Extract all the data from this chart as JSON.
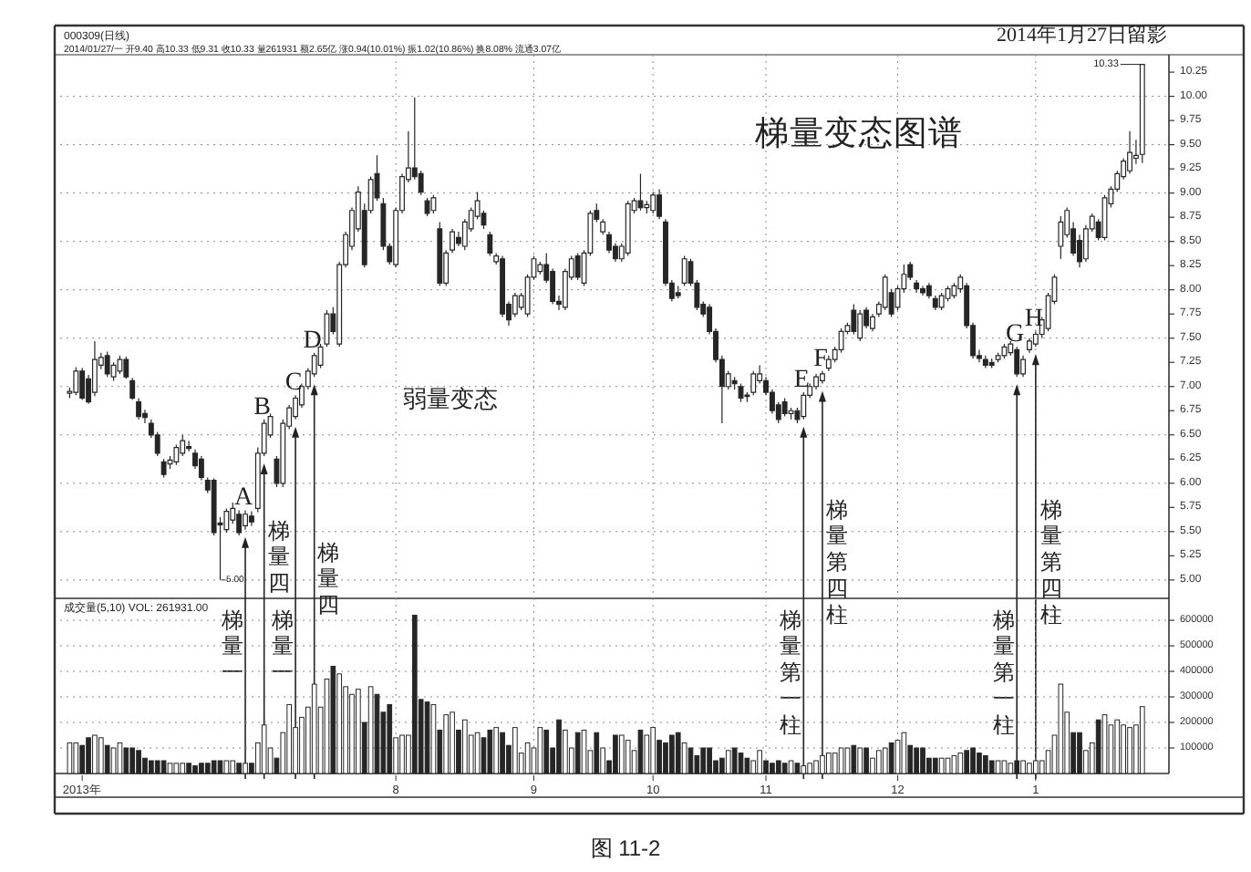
{
  "chart_data": [
    {
      "type": "candlestick",
      "title": "梯量变态图谱",
      "subtitle": "2014年1月27日留影",
      "categories": [
        null,
        null,
        "2013年",
        null,
        null,
        null,
        null,
        null,
        null,
        null,
        null,
        null,
        null,
        null,
        null,
        null,
        null,
        null,
        null,
        null,
        null,
        null,
        null,
        null,
        null,
        null,
        null,
        null,
        null,
        null,
        null,
        null,
        null,
        null,
        null,
        null,
        null,
        null,
        null,
        null,
        null,
        null,
        null,
        null,
        null,
        null,
        null,
        null,
        null,
        null,
        null,
        null,
        "8",
        null,
        null,
        null,
        null,
        null,
        null,
        null,
        null,
        null,
        null,
        null,
        null,
        null,
        null,
        null,
        null,
        null,
        null,
        null,
        null,
        null,
        "9",
        null,
        null,
        null,
        null,
        null,
        null,
        null,
        null,
        null,
        null,
        null,
        null,
        null,
        null,
        null,
        null,
        null,
        null,
        "10",
        null,
        null,
        null,
        null,
        null,
        null,
        null,
        null,
        null,
        null,
        null,
        null,
        null,
        null,
        null,
        null,
        null,
        "11",
        null,
        null,
        null,
        null,
        null,
        null,
        null,
        null,
        null,
        null,
        null,
        null,
        null,
        null,
        null,
        null,
        null,
        null,
        null,
        null,
        "12",
        null,
        null,
        null,
        null,
        null,
        null,
        null,
        null,
        null,
        null,
        null,
        null,
        null,
        null,
        null,
        null,
        null,
        null,
        null,
        null,
        null,
        "1",
        null,
        null,
        null,
        null,
        null,
        null,
        null,
        null,
        null,
        null,
        null,
        null,
        null,
        null,
        null,
        null,
        null
      ],
      "ohlc": [
        [
          6.93,
          6.99,
          6.88,
          6.95
        ],
        [
          6.94,
          7.2,
          6.91,
          7.16
        ],
        [
          7.16,
          7.19,
          6.86,
          6.88
        ],
        [
          7.08,
          7.12,
          6.82,
          6.84
        ],
        [
          6.94,
          7.47,
          6.9,
          7.28
        ],
        [
          7.22,
          7.35,
          7.18,
          7.3
        ],
        [
          7.32,
          7.36,
          7.1,
          7.13
        ],
        [
          7.1,
          7.25,
          7.06,
          7.22
        ],
        [
          7.16,
          7.32,
          7.13,
          7.28
        ],
        [
          7.28,
          7.31,
          7.08,
          7.1
        ],
        [
          7.06,
          7.09,
          6.86,
          6.88
        ],
        [
          6.84,
          6.88,
          6.66,
          6.69
        ],
        [
          6.72,
          6.76,
          6.62,
          6.68
        ],
        [
          6.62,
          6.66,
          6.47,
          6.5
        ],
        [
          6.5,
          6.53,
          6.28,
          6.31
        ],
        [
          6.22,
          6.25,
          6.06,
          6.09
        ],
        [
          6.2,
          6.28,
          6.15,
          6.24
        ],
        [
          6.22,
          6.4,
          6.19,
          6.37
        ],
        [
          6.31,
          6.5,
          6.28,
          6.44
        ],
        [
          6.38,
          6.44,
          6.33,
          6.36
        ],
        [
          6.31,
          6.35,
          6.15,
          6.18
        ],
        [
          6.25,
          6.28,
          6.03,
          6.06
        ],
        [
          6.03,
          6.06,
          5.9,
          5.93
        ],
        [
          6.03,
          6.05,
          5.46,
          5.49
        ],
        [
          5.59,
          5.65,
          5.0,
          5.57
        ],
        [
          5.52,
          5.74,
          5.49,
          5.71
        ],
        [
          5.62,
          5.8,
          5.58,
          5.74
        ],
        [
          5.68,
          5.72,
          5.46,
          5.49
        ],
        [
          5.56,
          5.72,
          5.52,
          5.68
        ],
        [
          5.66,
          5.71,
          5.56,
          5.6
        ],
        [
          5.74,
          6.37,
          5.7,
          6.31
        ],
        [
          6.31,
          6.66,
          6.28,
          6.62
        ],
        [
          6.5,
          6.72,
          6.47,
          6.69
        ],
        [
          6.25,
          6.28,
          5.96,
          6.0
        ],
        [
          6.0,
          6.66,
          5.96,
          6.62
        ],
        [
          6.59,
          6.81,
          6.56,
          6.78
        ],
        [
          6.69,
          6.91,
          6.66,
          6.88
        ],
        [
          6.81,
          7.03,
          6.78,
          7.0
        ],
        [
          7.0,
          7.19,
          6.97,
          7.16
        ],
        [
          7.13,
          7.35,
          7.1,
          7.32
        ],
        [
          7.22,
          7.44,
          7.19,
          7.41
        ],
        [
          7.44,
          7.79,
          7.41,
          7.75
        ],
        [
          7.75,
          7.82,
          7.54,
          7.57
        ],
        [
          7.44,
          8.29,
          7.41,
          8.26
        ],
        [
          8.26,
          8.6,
          8.23,
          8.57
        ],
        [
          8.45,
          8.85,
          8.41,
          8.82
        ],
        [
          8.63,
          9.07,
          8.6,
          9.01
        ],
        [
          8.82,
          8.89,
          8.23,
          8.26
        ],
        [
          8.82,
          9.17,
          8.79,
          9.14
        ],
        [
          9.2,
          9.39,
          8.92,
          8.95
        ],
        [
          8.89,
          8.95,
          8.41,
          8.45
        ],
        [
          8.45,
          8.48,
          8.26,
          8.29
        ],
        [
          8.26,
          8.85,
          8.23,
          8.82
        ],
        [
          8.82,
          9.2,
          8.79,
          9.17
        ],
        [
          9.14,
          9.64,
          9.11,
          9.26
        ],
        [
          9.26,
          9.99,
          9.14,
          9.17
        ],
        [
          9.2,
          9.23,
          8.98,
          9.01
        ],
        [
          8.92,
          8.95,
          8.76,
          8.79
        ],
        [
          8.82,
          8.98,
          8.79,
          8.95
        ],
        [
          8.63,
          8.7,
          8.04,
          8.07
        ],
        [
          8.07,
          8.41,
          8.04,
          8.38
        ],
        [
          8.41,
          8.63,
          8.38,
          8.6
        ],
        [
          8.54,
          8.6,
          8.45,
          8.48
        ],
        [
          8.45,
          8.73,
          8.41,
          8.7
        ],
        [
          8.63,
          8.85,
          8.6,
          8.82
        ],
        [
          8.76,
          9.01,
          8.73,
          8.92
        ],
        [
          8.79,
          8.82,
          8.63,
          8.67
        ],
        [
          8.57,
          8.6,
          8.35,
          8.38
        ],
        [
          8.29,
          8.38,
          8.26,
          8.35
        ],
        [
          8.32,
          8.35,
          7.72,
          7.75
        ],
        [
          7.85,
          7.88,
          7.63,
          7.69
        ],
        [
          7.75,
          7.97,
          7.72,
          7.94
        ],
        [
          7.82,
          7.97,
          7.79,
          7.94
        ],
        [
          7.75,
          8.16,
          7.72,
          8.13
        ],
        [
          8.13,
          8.35,
          8.1,
          8.32
        ],
        [
          8.19,
          8.29,
          8.16,
          8.26
        ],
        [
          8.26,
          8.38,
          8.07,
          8.1
        ],
        [
          8.19,
          8.22,
          7.85,
          7.88
        ],
        [
          7.88,
          7.94,
          7.79,
          7.85
        ],
        [
          7.82,
          8.22,
          7.79,
          8.19
        ],
        [
          8.13,
          8.35,
          8.1,
          8.32
        ],
        [
          8.35,
          8.38,
          8.1,
          8.13
        ],
        [
          8.07,
          8.41,
          8.04,
          8.38
        ],
        [
          8.38,
          8.82,
          8.35,
          8.79
        ],
        [
          8.82,
          8.89,
          8.7,
          8.73
        ],
        [
          8.6,
          8.73,
          8.57,
          8.7
        ],
        [
          8.57,
          8.6,
          8.38,
          8.41
        ],
        [
          8.45,
          8.48,
          8.29,
          8.32
        ],
        [
          8.32,
          8.48,
          8.29,
          8.45
        ],
        [
          8.38,
          8.92,
          8.35,
          8.89
        ],
        [
          8.82,
          8.95,
          8.79,
          8.92
        ],
        [
          8.92,
          9.2,
          8.82,
          8.85
        ],
        [
          8.85,
          8.92,
          8.79,
          8.88
        ],
        [
          8.82,
          9.01,
          8.79,
          8.98
        ],
        [
          8.98,
          9.04,
          8.73,
          8.76
        ],
        [
          8.7,
          8.73,
          8.04,
          8.07
        ],
        [
          8.07,
          8.1,
          7.88,
          7.91
        ],
        [
          7.97,
          8.04,
          7.91,
          7.94
        ],
        [
          8.07,
          8.35,
          8.04,
          8.32
        ],
        [
          8.29,
          8.32,
          8.04,
          8.07
        ],
        [
          8.07,
          8.1,
          7.79,
          7.82
        ],
        [
          7.85,
          7.88,
          7.72,
          7.75
        ],
        [
          7.82,
          7.85,
          7.54,
          7.57
        ],
        [
          7.57,
          7.6,
          7.25,
          7.28
        ],
        [
          7.28,
          7.32,
          6.62,
          7.0
        ],
        [
          7.0,
          7.16,
          6.97,
          7.13
        ],
        [
          7.06,
          7.1,
          6.97,
          7.03
        ],
        [
          7.0,
          7.03,
          6.84,
          6.88
        ],
        [
          6.91,
          6.94,
          6.84,
          6.9
        ],
        [
          6.94,
          7.16,
          6.91,
          7.13
        ],
        [
          7.06,
          7.22,
          7.03,
          7.13
        ],
        [
          7.06,
          7.1,
          6.91,
          6.94
        ],
        [
          6.94,
          6.97,
          6.72,
          6.75
        ],
        [
          6.81,
          6.84,
          6.62,
          6.66
        ],
        [
          6.84,
          6.88,
          6.69,
          6.72
        ],
        [
          6.72,
          6.78,
          6.66,
          6.75
        ],
        [
          6.75,
          6.78,
          6.62,
          6.66
        ],
        [
          6.69,
          6.94,
          6.66,
          6.91
        ],
        [
          6.91,
          7.03,
          6.88,
          7.0
        ],
        [
          7.0,
          7.13,
          6.97,
          7.1
        ],
        [
          7.06,
          7.16,
          7.03,
          7.13
        ],
        [
          7.19,
          7.32,
          7.16,
          7.28
        ],
        [
          7.28,
          7.41,
          7.25,
          7.38
        ],
        [
          7.38,
          7.6,
          7.35,
          7.57
        ],
        [
          7.57,
          7.66,
          7.54,
          7.63
        ],
        [
          7.79,
          7.85,
          7.54,
          7.57
        ],
        [
          7.5,
          7.79,
          7.47,
          7.75
        ],
        [
          7.79,
          7.82,
          7.6,
          7.63
        ],
        [
          7.6,
          7.75,
          7.57,
          7.72
        ],
        [
          7.75,
          7.88,
          7.72,
          7.85
        ],
        [
          7.82,
          8.16,
          7.79,
          8.13
        ],
        [
          7.97,
          8.01,
          7.72,
          7.75
        ],
        [
          7.82,
          8.04,
          7.79,
          8.01
        ],
        [
          8.01,
          8.26,
          7.97,
          8.16
        ],
        [
          8.26,
          8.29,
          8.1,
          8.13
        ],
        [
          8.07,
          8.1,
          7.97,
          8.01
        ],
        [
          8.01,
          8.04,
          7.94,
          7.97
        ],
        [
          8.04,
          8.07,
          7.91,
          7.94
        ],
        [
          7.91,
          7.94,
          7.79,
          7.82
        ],
        [
          7.82,
          7.97,
          7.79,
          7.94
        ],
        [
          7.91,
          8.04,
          7.88,
          8.01
        ],
        [
          7.94,
          8.07,
          7.91,
          8.04
        ],
        [
          8.01,
          8.16,
          7.97,
          8.13
        ],
        [
          8.04,
          8.07,
          7.6,
          7.63
        ],
        [
          7.63,
          7.66,
          7.29,
          7.32
        ],
        [
          7.32,
          7.38,
          7.25,
          7.29
        ],
        [
          7.28,
          7.32,
          7.19,
          7.22
        ],
        [
          7.25,
          7.29,
          7.19,
          7.22
        ],
        [
          7.28,
          7.35,
          7.25,
          7.32
        ],
        [
          7.32,
          7.44,
          7.29,
          7.41
        ],
        [
          7.35,
          7.47,
          7.32,
          7.44
        ],
        [
          7.38,
          7.41,
          7.1,
          7.13
        ],
        [
          7.13,
          7.32,
          7.1,
          7.28
        ],
        [
          7.38,
          7.5,
          7.35,
          7.47
        ],
        [
          7.44,
          7.57,
          7.41,
          7.54
        ],
        [
          7.54,
          7.72,
          7.5,
          7.69
        ],
        [
          7.6,
          7.97,
          7.57,
          7.94
        ],
        [
          7.88,
          8.16,
          7.85,
          8.13
        ],
        [
          8.45,
          8.76,
          8.32,
          8.7
        ],
        [
          8.57,
          8.85,
          8.54,
          8.82
        ],
        [
          8.63,
          8.7,
          8.35,
          8.38
        ],
        [
          8.51,
          8.57,
          8.23,
          8.29
        ],
        [
          8.32,
          8.67,
          8.29,
          8.63
        ],
        [
          8.63,
          8.79,
          8.6,
          8.76
        ],
        [
          8.7,
          8.73,
          8.51,
          8.54
        ],
        [
          8.54,
          8.98,
          8.51,
          8.95
        ],
        [
          8.89,
          9.07,
          8.85,
          9.04
        ],
        [
          9.04,
          9.23,
          9.01,
          9.2
        ],
        [
          9.17,
          9.36,
          9.14,
          9.33
        ],
        [
          9.23,
          9.64,
          9.2,
          9.42
        ],
        [
          9.36,
          9.55,
          9.3,
          9.39
        ],
        [
          9.4,
          10.33,
          9.31,
          10.33
        ]
      ],
      "color": "#262626",
      "ylim": [
        4.81,
        10.43
      ],
      "yticks": [
        {
          "value": 5,
          "label": "5.00"
        },
        {
          "value": 5.25,
          "label": "5.25"
        },
        {
          "value": 5.5,
          "label": "5.50"
        },
        {
          "value": 5.75,
          "label": "5.75"
        },
        {
          "value": 6,
          "label": "6.00"
        },
        {
          "value": 6.25,
          "label": "6.25"
        },
        {
          "value": 6.5,
          "label": "6.50"
        },
        {
          "value": 6.75,
          "label": "6.75"
        },
        {
          "value": 7,
          "label": "7.00"
        },
        {
          "value": 7.25,
          "label": "7.25"
        },
        {
          "value": 7.5,
          "label": "7.50"
        },
        {
          "value": 7.75,
          "label": "7.75"
        },
        {
          "value": 8,
          "label": "8.00"
        },
        {
          "value": 8.25,
          "label": "8.25"
        },
        {
          "value": 8.5,
          "label": "8.50"
        },
        {
          "value": 8.75,
          "label": "8.75"
        },
        {
          "value": 9,
          "label": "9.00"
        },
        {
          "value": 9.25,
          "label": "9.25"
        },
        {
          "value": 9.5,
          "label": "9.50"
        },
        {
          "value": 9.75,
          "label": "9.75"
        },
        {
          "value": 10,
          "label": "10.00"
        },
        {
          "value": 10.25,
          "label": "10.25"
        }
      ],
      "grid": true,
      "tick_labels": "y",
      "annotations": [
        "A",
        "B",
        "C",
        "D",
        "E",
        "F",
        "G",
        "H",
        "弱量变态",
        "梯量一",
        "梯量四",
        "梯量一",
        "梯量四",
        "梯量第一柱",
        "梯量第四柱",
        "梯量第一柱",
        "梯量第四柱",
        "10.33",
        "5.00",
        "000309(日线)",
        "2014/01/27/一 开9.40 高10.33 低9.31 收10.33 量261931 额2.65亿 涨0.94(10.01%) 振1.02(10.86%) 换8.08% 流通3.07亿",
        "图 11-2"
      ]
    },
    {
      "type": "bar",
      "categories": [
        null,
        null,
        "2013年",
        null,
        null,
        null,
        null,
        null,
        null,
        null,
        null,
        null,
        null,
        null,
        null,
        null,
        null,
        null,
        null,
        null,
        null,
        null,
        null,
        null,
        null,
        null,
        null,
        null,
        null,
        null,
        null,
        null,
        null,
        null,
        null,
        null,
        null,
        null,
        null,
        null,
        null,
        null,
        null,
        null,
        null,
        null,
        null,
        null,
        null,
        null,
        null,
        null,
        "8",
        null,
        null,
        null,
        null,
        null,
        null,
        null,
        null,
        null,
        null,
        null,
        null,
        null,
        null,
        null,
        null,
        null,
        null,
        null,
        null,
        null,
        "9",
        null,
        null,
        null,
        null,
        null,
        null,
        null,
        null,
        null,
        null,
        null,
        null,
        null,
        null,
        null,
        null,
        null,
        null,
        "10",
        null,
        null,
        null,
        null,
        null,
        null,
        null,
        null,
        null,
        null,
        null,
        null,
        null,
        null,
        null,
        null,
        null,
        "11",
        null,
        null,
        null,
        null,
        null,
        null,
        null,
        null,
        null,
        null,
        null,
        null,
        null,
        null,
        null,
        null,
        null,
        null,
        null,
        null,
        "12",
        null,
        null,
        null,
        null,
        null,
        null,
        null,
        null,
        null,
        null,
        null,
        null,
        null,
        null,
        null,
        null,
        null,
        null,
        null,
        null,
        null,
        "1",
        null,
        null,
        null,
        null,
        null,
        null,
        null,
        null,
        null,
        null,
        null,
        null,
        null,
        null,
        null,
        null,
        null
      ],
      "values": [
        120000,
        120000,
        110000,
        140000,
        150000,
        140000,
        110000,
        100000,
        120000,
        100000,
        100000,
        90000,
        60000,
        50000,
        50000,
        50000,
        40000,
        40000,
        40000,
        40000,
        30000,
        40000,
        40000,
        50000,
        50000,
        50000,
        50000,
        40000,
        40000,
        40000,
        120000,
        190000,
        100000,
        60000,
        160000,
        270000,
        180000,
        220000,
        260000,
        350000,
        260000,
        370000,
        420000,
        390000,
        340000,
        310000,
        330000,
        200000,
        340000,
        310000,
        240000,
        270000,
        140000,
        150000,
        150000,
        620000,
        290000,
        280000,
        270000,
        170000,
        230000,
        240000,
        170000,
        210000,
        150000,
        160000,
        140000,
        170000,
        180000,
        160000,
        110000,
        180000,
        80000,
        120000,
        100000,
        180000,
        170000,
        100000,
        210000,
        170000,
        100000,
        160000,
        170000,
        90000,
        160000,
        100000,
        50000,
        150000,
        150000,
        130000,
        90000,
        170000,
        150000,
        180000,
        130000,
        120000,
        150000,
        160000,
        120000,
        100000,
        70000,
        100000,
        100000,
        50000,
        60000,
        90000,
        100000,
        80000,
        60000,
        50000,
        90000,
        50000,
        40000,
        50000,
        40000,
        50000,
        40000,
        30000,
        40000,
        50000,
        70000,
        80000,
        80000,
        100000,
        100000,
        110000,
        100000,
        100000,
        60000,
        90000,
        100000,
        120000,
        130000,
        160000,
        110000,
        100000,
        100000,
        60000,
        60000,
        60000,
        60000,
        70000,
        80000,
        90000,
        100000,
        80000,
        70000,
        50000,
        50000,
        50000,
        40000,
        50000,
        50000,
        40000,
        50000,
        50000,
        90000,
        150000,
        350000,
        240000,
        160000,
        160000,
        90000,
        120000,
        210000,
        230000,
        190000,
        210000,
        190000,
        180000,
        190000,
        261931
      ],
      "colors": [
        "#ffffff",
        "#ffffff",
        "#262626",
        "#262626",
        "#ffffff",
        "#ffffff",
        "#262626",
        "#ffffff",
        "#ffffff",
        "#262626",
        "#262626",
        "#262626",
        "#262626",
        "#262626",
        "#262626",
        "#262626",
        "#ffffff",
        "#ffffff",
        "#ffffff",
        "#262626",
        "#262626",
        "#262626",
        "#262626",
        "#262626",
        "#262626",
        "#ffffff",
        "#ffffff",
        "#262626",
        "#ffffff",
        "#262626",
        "#ffffff",
        "#ffffff",
        "#ffffff",
        "#262626",
        "#ffffff",
        "#ffffff",
        "#ffffff",
        "#ffffff",
        "#ffffff",
        "#ffffff",
        "#ffffff",
        "#ffffff",
        "#262626",
        "#ffffff",
        "#ffffff",
        "#ffffff",
        "#ffffff",
        "#262626",
        "#ffffff",
        "#262626",
        "#262626",
        "#262626",
        "#ffffff",
        "#ffffff",
        "#ffffff",
        "#262626",
        "#262626",
        "#262626",
        "#ffffff",
        "#262626",
        "#ffffff",
        "#ffffff",
        "#262626",
        "#ffffff",
        "#ffffff",
        "#ffffff",
        "#262626",
        "#262626",
        "#ffffff",
        "#262626",
        "#262626",
        "#ffffff",
        "#ffffff",
        "#ffffff",
        "#ffffff",
        "#ffffff",
        "#262626",
        "#262626",
        "#262626",
        "#ffffff",
        "#ffffff",
        "#262626",
        "#ffffff",
        "#ffffff",
        "#262626",
        "#ffffff",
        "#262626",
        "#262626",
        "#ffffff",
        "#ffffff",
        "#ffffff",
        "#262626",
        "#ffffff",
        "#ffffff",
        "#262626",
        "#262626",
        "#262626",
        "#262626",
        "#ffffff",
        "#262626",
        "#262626",
        "#262626",
        "#262626",
        "#262626",
        "#262626",
        "#ffffff",
        "#262626",
        "#262626",
        "#262626",
        "#ffffff",
        "#ffffff",
        "#262626",
        "#262626",
        "#262626",
        "#262626",
        "#ffffff",
        "#262626",
        "#ffffff",
        "#ffffff",
        "#ffffff",
        "#ffffff",
        "#ffffff",
        "#ffffff",
        "#ffffff",
        "#ffffff",
        "#262626",
        "#ffffff",
        "#262626",
        "#ffffff",
        "#ffffff",
        "#ffffff",
        "#262626",
        "#ffffff",
        "#ffffff",
        "#262626",
        "#262626",
        "#262626",
        "#262626",
        "#262626",
        "#ffffff",
        "#ffffff",
        "#ffffff",
        "#ffffff",
        "#262626",
        "#262626",
        "#262626",
        "#262626",
        "#262626",
        "#ffffff",
        "#ffffff",
        "#ffffff",
        "#262626",
        "#ffffff",
        "#ffffff",
        "#ffffff",
        "#ffffff",
        "#ffffff",
        "#ffffff",
        "#ffffff",
        "#ffffff",
        "#262626",
        "#262626",
        "#ffffff",
        "#ffffff",
        "#262626",
        "#ffffff",
        "#ffffff",
        "#ffffff",
        "#ffffff",
        "#ffffff",
        "#ffffff",
        "#ffffff"
      ],
      "color": "#262626",
      "ylim": [
        0,
        686000
      ],
      "yticks": [
        100000,
        200000,
        300000,
        400000,
        500000,
        600000
      ],
      "grid": true,
      "annotations": [
        "成交量(5,10) VOL: 261931.00"
      ]
    }
  ]
}
